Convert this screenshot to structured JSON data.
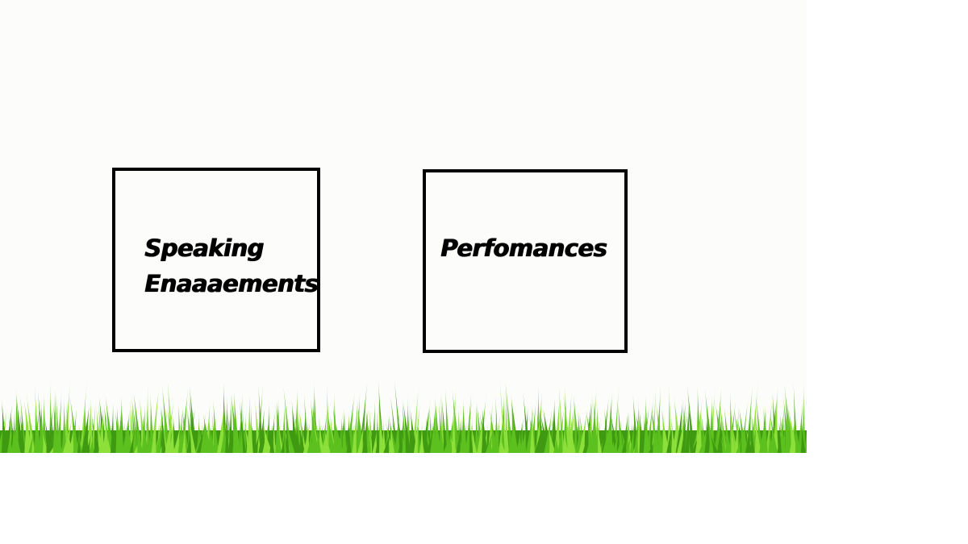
{
  "boxes": {
    "speaking": {
      "line1": "Speaking",
      "line2": "Enaaaements"
    },
    "performances": {
      "label": "Perfomances"
    }
  },
  "colors": {
    "background": "#ffffff",
    "banner": "#fcfcfa",
    "box_border": "#000000",
    "grass_dark": "#3f9a12",
    "grass_mid": "#5cc01e",
    "grass_light": "#8de03a"
  },
  "icons": {
    "grass": "grass-strip"
  }
}
